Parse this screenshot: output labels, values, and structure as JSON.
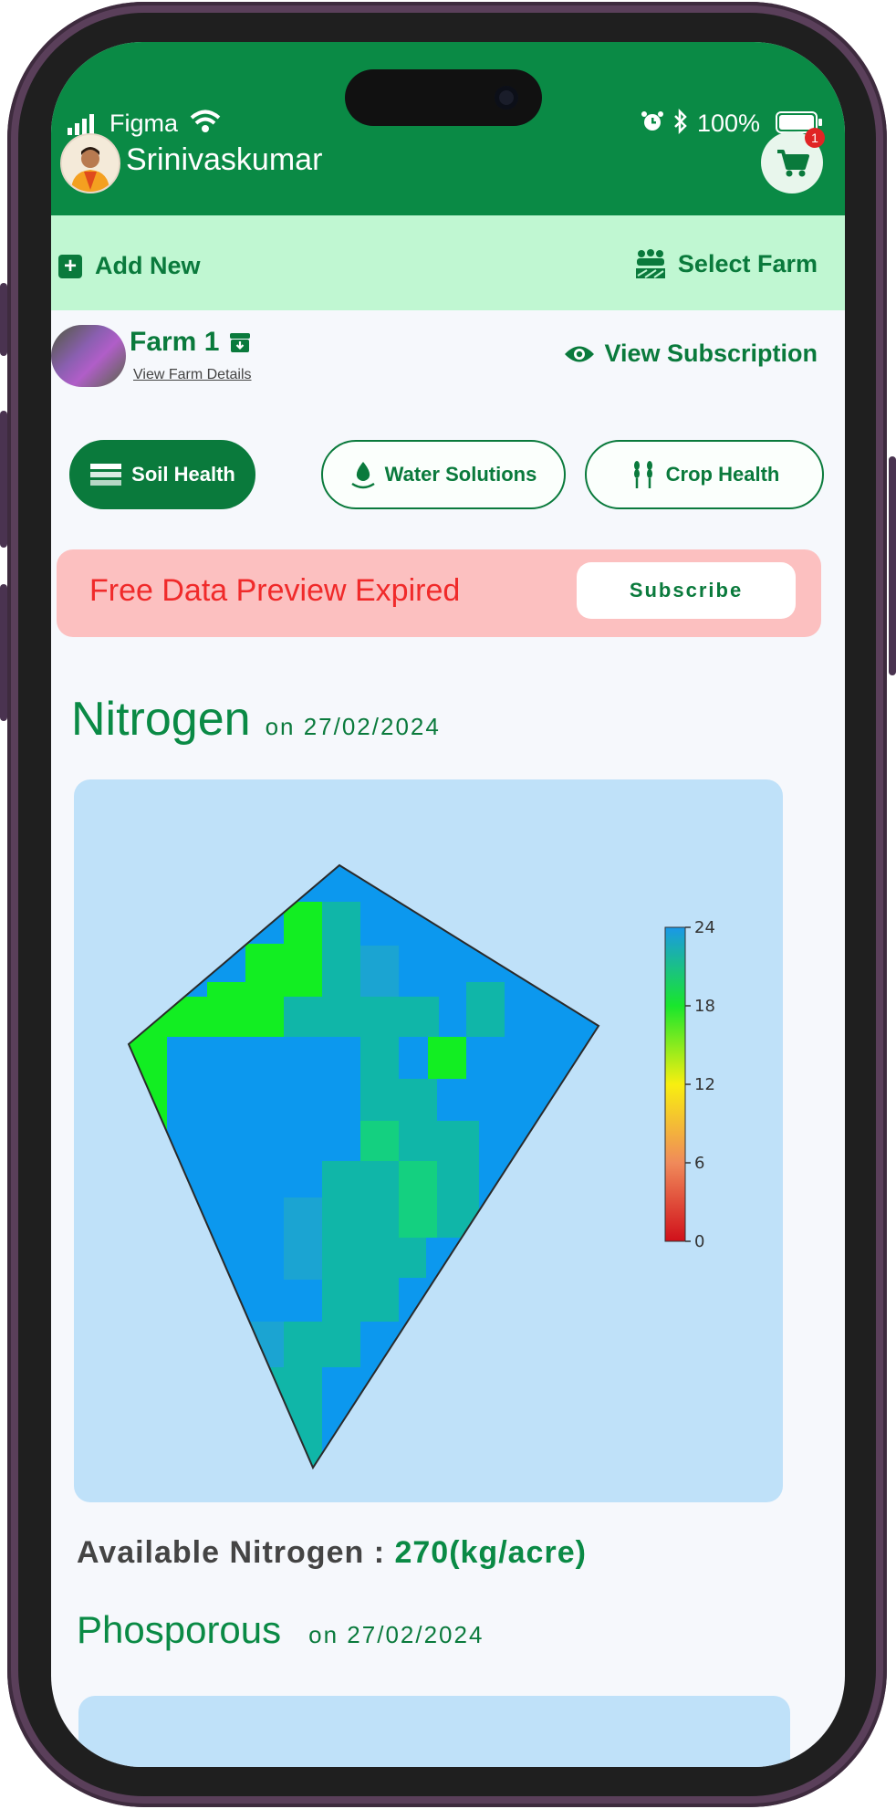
{
  "status_bar": {
    "carrier": "Figma",
    "battery": "100%"
  },
  "header": {
    "username": "Srinivaskumar",
    "cart_count": "1"
  },
  "actions": {
    "add_new": "Add New",
    "select_farm": "Select Farm"
  },
  "farm": {
    "name": "Farm 1",
    "details_link": "View Farm Details",
    "view_subscription": "View Subscription"
  },
  "tabs": [
    {
      "label": "Soil Health",
      "active": true
    },
    {
      "label": "Water Solutions",
      "active": false
    },
    {
      "label": "Crop Health",
      "active": false
    }
  ],
  "banner": {
    "message": "Free Data Preview Expired",
    "button": "Subscribe"
  },
  "nitrogen": {
    "title": "Nitrogen",
    "date": "on 27/02/2024",
    "available_label": "Available Nitrogen : ",
    "available_value": "270(kg/acre)"
  },
  "phosphorous": {
    "title": "Phosporous",
    "date": "on 27/02/2024"
  },
  "colors": {
    "brand": "#0a8a45",
    "tab_active": "#0a7a3c",
    "banner_bg": "#fcc0c0",
    "banner_text": "#f02a2a",
    "map_bg": "#bfe1f9"
  },
  "chart_data": {
    "type": "heatmap",
    "colorbar": {
      "min": 0,
      "max": 24,
      "ticks": [
        "24",
        "18",
        "12",
        "6",
        "0"
      ]
    },
    "dominant_value_range": [
      20,
      24
    ]
  }
}
